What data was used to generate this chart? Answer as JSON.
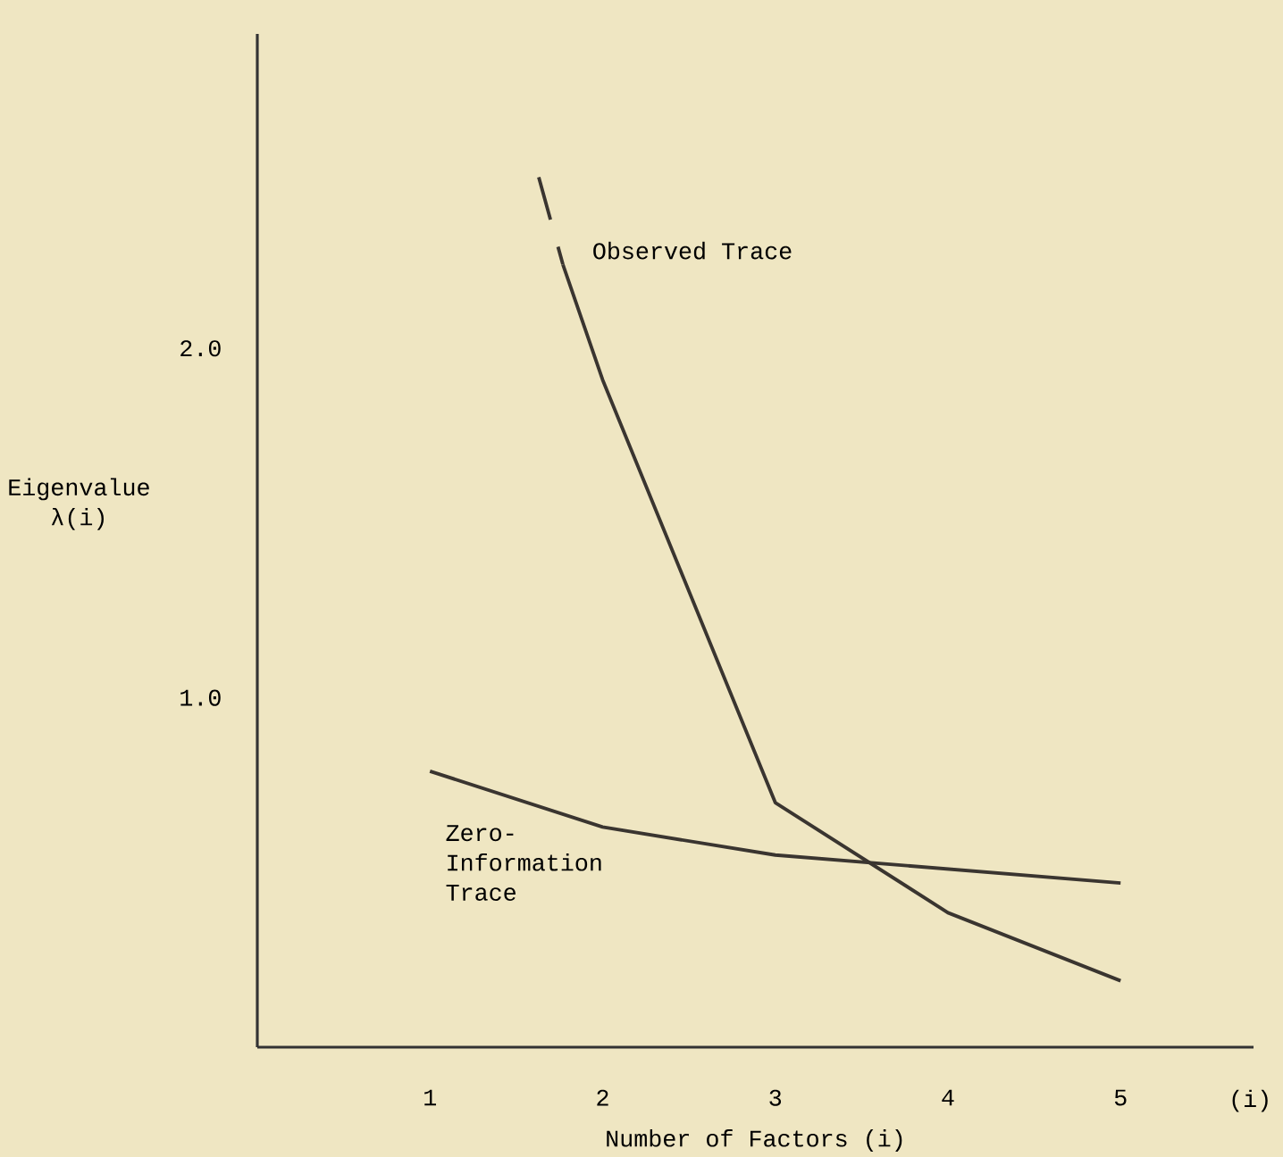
{
  "chart_data": {
    "type": "line",
    "xlabel": "Number of Factors (i)",
    "ylabel": "Eigenvalue λ(i)",
    "xlim": [
      0,
      5.77
    ],
    "ylim": [
      0,
      2.9
    ],
    "xticks": [
      1,
      2,
      3,
      4,
      5,
      {
        "value": 5.75,
        "label": "(i)"
      }
    ],
    "yticks": [
      {
        "value": 1,
        "label": "1.0"
      },
      {
        "value": 2,
        "label": "2.0"
      }
    ],
    "grid": false,
    "marker": "none",
    "series": [
      {
        "name": "Observed Trace",
        "color": "#3a3530",
        "line_style": "solid",
        "x": [
          1.77,
          2,
          3,
          4,
          5
        ],
        "values": [
          2.24,
          1.91,
          0.7,
          0.385,
          0.19
        ]
      },
      {
        "color": "#3a3530",
        "line_style": "dashed",
        "x": [
          1.63,
          1.77
        ],
        "values": [
          2.49,
          2.24
        ]
      },
      {
        "name": "Zero-Information Trace",
        "color": "#3a3530",
        "line_style": "solid",
        "x": [
          1,
          2,
          3,
          4,
          5
        ],
        "values": [
          0.79,
          0.63,
          0.55,
          0.51,
          0.47
        ]
      }
    ]
  }
}
